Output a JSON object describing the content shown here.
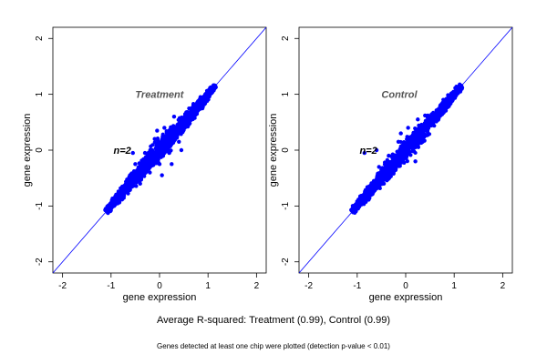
{
  "summary": "Average R-squared: Treatment (0.99), Control (0.99)",
  "footnote": "Genes detected at least one chip were plotted (detection p-value < 0.01)",
  "colors": {
    "points": "#0000ff",
    "diagonal": "#0000ff",
    "axes": "#000000",
    "label": "#555555"
  },
  "chart_data": [
    {
      "type": "scatter",
      "title": "Treatment",
      "annotation": "n=2",
      "xlabel": "gene expression",
      "ylabel": "gene expression",
      "xlim": [
        -2.2,
        2.2
      ],
      "ylim": [
        -2.2,
        2.2
      ],
      "xticks": [
        -2,
        -1,
        0,
        1,
        2
      ],
      "yticks": [
        -2,
        -1,
        0,
        1,
        2
      ],
      "reference_line": {
        "slope": 1,
        "intercept": 0
      },
      "r_squared": 0.99,
      "points": [
        [
          -1.08,
          -1.07
        ],
        [
          -1.0,
          -1.02
        ],
        [
          -0.92,
          -0.94
        ],
        [
          -0.85,
          -0.84
        ],
        [
          -0.76,
          -0.78
        ],
        [
          -0.7,
          -0.66
        ],
        [
          -0.62,
          -0.62
        ],
        [
          -0.55,
          -0.5
        ],
        [
          -0.48,
          -0.46
        ],
        [
          -0.4,
          -0.38
        ],
        [
          -0.35,
          -0.28
        ],
        [
          -0.28,
          -0.22
        ],
        [
          -0.2,
          -0.2
        ],
        [
          -0.15,
          -0.08
        ],
        [
          -0.08,
          -0.05
        ],
        [
          0.0,
          0.02
        ],
        [
          0.05,
          0.08
        ],
        [
          0.12,
          0.14
        ],
        [
          0.2,
          0.2
        ],
        [
          0.28,
          0.3
        ],
        [
          0.35,
          0.38
        ],
        [
          0.42,
          0.45
        ],
        [
          0.5,
          0.52
        ],
        [
          0.58,
          0.6
        ],
        [
          0.66,
          0.68
        ],
        [
          0.74,
          0.76
        ],
        [
          0.82,
          0.86
        ],
        [
          0.9,
          0.92
        ],
        [
          1.0,
          1.0
        ],
        [
          1.08,
          1.08
        ],
        [
          1.15,
          1.15
        ],
        [
          -0.5,
          -0.25
        ],
        [
          -0.3,
          -0.05
        ],
        [
          -0.1,
          0.2
        ],
        [
          0.1,
          0.4
        ],
        [
          0.3,
          0.6
        ],
        [
          -0.4,
          -0.6
        ],
        [
          -0.2,
          -0.4
        ],
        [
          0.0,
          -0.25
        ],
        [
          0.2,
          -0.05
        ],
        [
          0.4,
          0.15
        ],
        [
          -0.55,
          -0.05
        ],
        [
          -0.05,
          0.35
        ],
        [
          0.25,
          -0.25
        ],
        [
          0.05,
          -0.45
        ],
        [
          0.45,
          0.0
        ]
      ]
    },
    {
      "type": "scatter",
      "title": "Control",
      "annotation": "n=2",
      "xlabel": "gene expression",
      "ylabel": "gene expression",
      "xlim": [
        -2.2,
        2.2
      ],
      "ylim": [
        -2.2,
        2.2
      ],
      "xticks": [
        -2,
        -1,
        0,
        1,
        2
      ],
      "yticks": [
        -2,
        -1,
        0,
        1,
        2
      ],
      "reference_line": {
        "slope": 1,
        "intercept": 0
      },
      "r_squared": 0.99,
      "points": [
        [
          -1.1,
          -1.08
        ],
        [
          -1.02,
          -0.98
        ],
        [
          -0.95,
          -0.94
        ],
        [
          -0.86,
          -0.86
        ],
        [
          -0.78,
          -0.76
        ],
        [
          -0.7,
          -0.7
        ],
        [
          -0.62,
          -0.6
        ],
        [
          -0.55,
          -0.52
        ],
        [
          -0.46,
          -0.46
        ],
        [
          -0.4,
          -0.36
        ],
        [
          -0.32,
          -0.3
        ],
        [
          -0.25,
          -0.22
        ],
        [
          -0.18,
          -0.14
        ],
        [
          -0.1,
          -0.08
        ],
        [
          -0.02,
          0.0
        ],
        [
          0.05,
          0.06
        ],
        [
          0.12,
          0.15
        ],
        [
          0.2,
          0.22
        ],
        [
          0.28,
          0.3
        ],
        [
          0.36,
          0.38
        ],
        [
          0.44,
          0.46
        ],
        [
          0.52,
          0.55
        ],
        [
          0.6,
          0.62
        ],
        [
          0.68,
          0.7
        ],
        [
          0.76,
          0.78
        ],
        [
          0.84,
          0.86
        ],
        [
          0.92,
          0.95
        ],
        [
          1.0,
          1.02
        ],
        [
          1.08,
          1.08
        ],
        [
          1.15,
          1.15
        ],
        [
          -0.55,
          -0.3
        ],
        [
          -0.35,
          -0.1
        ],
        [
          -0.15,
          0.15
        ],
        [
          0.05,
          0.4
        ],
        [
          0.25,
          0.55
        ],
        [
          -0.45,
          -0.6
        ],
        [
          -0.25,
          -0.42
        ],
        [
          -0.05,
          -0.2
        ],
        [
          0.15,
          -0.02
        ],
        [
          0.35,
          0.15
        ],
        [
          -0.85,
          -0.05
        ],
        [
          -0.6,
          0.0
        ],
        [
          -0.1,
          0.3
        ],
        [
          0.2,
          -0.2
        ],
        [
          0.4,
          0.62
        ]
      ]
    }
  ]
}
